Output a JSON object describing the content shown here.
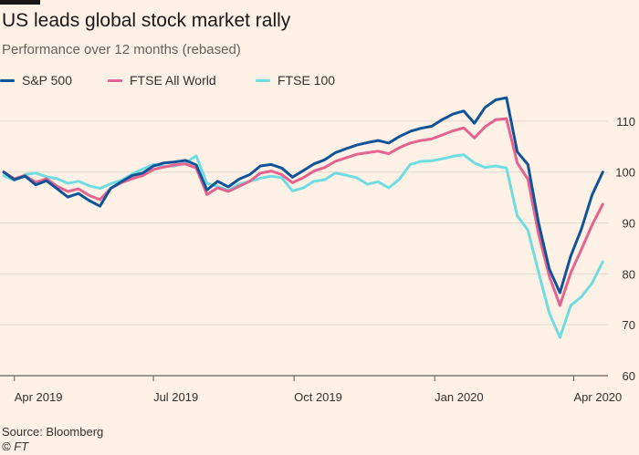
{
  "header": {
    "title": "US leads global stock market rally",
    "subtitle": "Performance over 12 months (rebased)"
  },
  "footer": {
    "source": "Source: Bloomberg",
    "copyright": "© FT"
  },
  "colors": {
    "background": "#fff1e5",
    "grid": "#e2d9d0",
    "sp500": "#0f5499",
    "ftse_world": "#e5638f",
    "ftse100": "#6fdde0"
  },
  "chart_data": {
    "type": "line",
    "xlabel": "",
    "ylabel": "",
    "ylim": [
      60,
      115
    ],
    "yticks": [
      60,
      70,
      80,
      90,
      100,
      110
    ],
    "xlim": [
      "2019-03-25",
      "2020-04-21"
    ],
    "xticks": [
      {
        "date": "2019-04-01",
        "label": "Apr 2019"
      },
      {
        "date": "2019-07-01",
        "label": "Jul 2019"
      },
      {
        "date": "2019-10-01",
        "label": "Oct 2019"
      },
      {
        "date": "2020-01-01",
        "label": "Jan 2020"
      },
      {
        "date": "2020-04-01",
        "label": "Apr 2020"
      }
    ],
    "grid": true,
    "y_axis_side": "right",
    "legend_position": "top-left",
    "series": [
      {
        "name": "S&P 500",
        "color": "#0f5499",
        "points": [
          [
            "2019-03-25",
            100
          ],
          [
            "2019-04-01",
            98.5
          ],
          [
            "2019-04-08",
            99.2
          ],
          [
            "2019-04-15",
            97.5
          ],
          [
            "2019-04-22",
            98.3
          ],
          [
            "2019-04-29",
            96.7
          ],
          [
            "2019-05-06",
            95.1
          ],
          [
            "2019-05-13",
            95.8
          ],
          [
            "2019-05-20",
            94.4
          ],
          [
            "2019-05-27",
            93.3
          ],
          [
            "2019-06-03",
            96.8
          ],
          [
            "2019-06-10",
            98.1
          ],
          [
            "2019-06-17",
            99.3
          ],
          [
            "2019-06-24",
            99.8
          ],
          [
            "2019-07-01",
            101.2
          ],
          [
            "2019-07-08",
            101.8
          ],
          [
            "2019-07-15",
            102
          ],
          [
            "2019-07-22",
            102.3
          ],
          [
            "2019-07-29",
            101.4
          ],
          [
            "2019-08-05",
            96.5
          ],
          [
            "2019-08-12",
            98.2
          ],
          [
            "2019-08-19",
            97.1
          ],
          [
            "2019-08-26",
            98.6
          ],
          [
            "2019-09-02",
            99.5
          ],
          [
            "2019-09-09",
            101.2
          ],
          [
            "2019-09-16",
            101.5
          ],
          [
            "2019-09-23",
            100.8
          ],
          [
            "2019-09-30",
            99
          ],
          [
            "2019-10-07",
            100.3
          ],
          [
            "2019-10-14",
            101.6
          ],
          [
            "2019-10-21",
            102.4
          ],
          [
            "2019-10-28",
            103.8
          ],
          [
            "2019-11-04",
            104.6
          ],
          [
            "2019-11-11",
            105.3
          ],
          [
            "2019-11-18",
            105.8
          ],
          [
            "2019-11-25",
            106.2
          ],
          [
            "2019-12-02",
            105.7
          ],
          [
            "2019-12-09",
            107
          ],
          [
            "2019-12-16",
            108
          ],
          [
            "2019-12-23",
            108.6
          ],
          [
            "2019-12-30",
            109
          ],
          [
            "2020-01-06",
            110.3
          ],
          [
            "2020-01-13",
            111.4
          ],
          [
            "2020-01-20",
            112
          ],
          [
            "2020-01-27",
            109.6
          ],
          [
            "2020-02-03",
            112.7
          ],
          [
            "2020-02-10",
            114.2
          ],
          [
            "2020-02-17",
            114.6
          ],
          [
            "2020-02-24",
            104
          ],
          [
            "2020-03-02",
            101.5
          ],
          [
            "2020-03-09",
            90
          ],
          [
            "2020-03-16",
            81
          ],
          [
            "2020-03-23",
            76.3
          ],
          [
            "2020-03-30",
            83.5
          ],
          [
            "2020-04-06",
            88.8
          ],
          [
            "2020-04-13",
            95.5
          ],
          [
            "2020-04-20",
            100
          ]
        ]
      },
      {
        "name": "FTSE All World",
        "color": "#e5638f",
        "points": [
          [
            "2019-03-25",
            100
          ],
          [
            "2019-04-01",
            98.7
          ],
          [
            "2019-04-08",
            99.3
          ],
          [
            "2019-04-15",
            98
          ],
          [
            "2019-04-22",
            98.7
          ],
          [
            "2019-04-29",
            97.2
          ],
          [
            "2019-05-06",
            96.2
          ],
          [
            "2019-05-13",
            96.7
          ],
          [
            "2019-05-20",
            95.4
          ],
          [
            "2019-05-27",
            94.6
          ],
          [
            "2019-06-03",
            96.8
          ],
          [
            "2019-06-10",
            97.9
          ],
          [
            "2019-06-17",
            98.7
          ],
          [
            "2019-06-24",
            99.3
          ],
          [
            "2019-07-01",
            100.5
          ],
          [
            "2019-07-08",
            101
          ],
          [
            "2019-07-15",
            101.4
          ],
          [
            "2019-07-22",
            101.6
          ],
          [
            "2019-07-29",
            100.8
          ],
          [
            "2019-08-05",
            95.6
          ],
          [
            "2019-08-12",
            96.9
          ],
          [
            "2019-08-19",
            96.2
          ],
          [
            "2019-08-26",
            97.2
          ],
          [
            "2019-09-02",
            98.2
          ],
          [
            "2019-09-09",
            99.8
          ],
          [
            "2019-09-16",
            100.2
          ],
          [
            "2019-09-23",
            99.5
          ],
          [
            "2019-09-30",
            97.9
          ],
          [
            "2019-10-07",
            98.9
          ],
          [
            "2019-10-14",
            100.2
          ],
          [
            "2019-10-21",
            100.9
          ],
          [
            "2019-10-28",
            102.1
          ],
          [
            "2019-11-04",
            102.8
          ],
          [
            "2019-11-11",
            103.5
          ],
          [
            "2019-11-18",
            103.8
          ],
          [
            "2019-11-25",
            104.1
          ],
          [
            "2019-12-02",
            103.6
          ],
          [
            "2019-12-09",
            104.8
          ],
          [
            "2019-12-16",
            105.7
          ],
          [
            "2019-12-23",
            106.2
          ],
          [
            "2019-12-30",
            106.5
          ],
          [
            "2020-01-06",
            107.3
          ],
          [
            "2020-01-13",
            108.1
          ],
          [
            "2020-01-20",
            108.7
          ],
          [
            "2020-01-27",
            106.7
          ],
          [
            "2020-02-03",
            108.9
          ],
          [
            "2020-02-10",
            110.3
          ],
          [
            "2020-02-17",
            110.5
          ],
          [
            "2020-02-24",
            101.8
          ],
          [
            "2020-03-02",
            98.6
          ],
          [
            "2020-03-09",
            87.8
          ],
          [
            "2020-03-16",
            79.6
          ],
          [
            "2020-03-23",
            73.8
          ],
          [
            "2020-03-30",
            80.2
          ],
          [
            "2020-04-06",
            84.8
          ],
          [
            "2020-04-13",
            89.6
          ],
          [
            "2020-04-20",
            93.7
          ]
        ]
      },
      {
        "name": "FTSE 100",
        "color": "#6fdde0",
        "points": [
          [
            "2019-03-25",
            99.3
          ],
          [
            "2019-04-01",
            98.4
          ],
          [
            "2019-04-08",
            99.5
          ],
          [
            "2019-04-15",
            99.8
          ],
          [
            "2019-04-22",
            99.1
          ],
          [
            "2019-04-29",
            98.7
          ],
          [
            "2019-05-06",
            97.8
          ],
          [
            "2019-05-13",
            98.2
          ],
          [
            "2019-05-20",
            97.3
          ],
          [
            "2019-05-27",
            96.8
          ],
          [
            "2019-06-03",
            97.7
          ],
          [
            "2019-06-10",
            98.4
          ],
          [
            "2019-06-17",
            99.6
          ],
          [
            "2019-06-24",
            100.6
          ],
          [
            "2019-07-01",
            101.5
          ],
          [
            "2019-07-08",
            101.1
          ],
          [
            "2019-07-15",
            101.2
          ],
          [
            "2019-07-22",
            101.8
          ],
          [
            "2019-07-29",
            103.2
          ],
          [
            "2019-08-05",
            97.8
          ],
          [
            "2019-08-12",
            97.2
          ],
          [
            "2019-08-19",
            96.4
          ],
          [
            "2019-08-26",
            97.6
          ],
          [
            "2019-09-02",
            98.2
          ],
          [
            "2019-09-09",
            98.8
          ],
          [
            "2019-09-16",
            99.2
          ],
          [
            "2019-09-23",
            98.9
          ],
          [
            "2019-09-30",
            96.3
          ],
          [
            "2019-10-07",
            96.9
          ],
          [
            "2019-10-14",
            98.2
          ],
          [
            "2019-10-21",
            98.5
          ],
          [
            "2019-10-28",
            99.8
          ],
          [
            "2019-11-04",
            99.4
          ],
          [
            "2019-11-11",
            98.9
          ],
          [
            "2019-11-18",
            97.6
          ],
          [
            "2019-11-25",
            98.1
          ],
          [
            "2019-12-02",
            96.9
          ],
          [
            "2019-12-09",
            98.6
          ],
          [
            "2019-12-16",
            101.5
          ],
          [
            "2019-12-23",
            102.1
          ],
          [
            "2019-12-30",
            102.2
          ],
          [
            "2020-01-06",
            102.6
          ],
          [
            "2020-01-13",
            103.1
          ],
          [
            "2020-01-20",
            103.4
          ],
          [
            "2020-01-27",
            101.8
          ],
          [
            "2020-02-03",
            100.9
          ],
          [
            "2020-02-10",
            101.2
          ],
          [
            "2020-02-17",
            100.8
          ],
          [
            "2020-02-24",
            91.4
          ],
          [
            "2020-03-02",
            88.6
          ],
          [
            "2020-03-09",
            80.3
          ],
          [
            "2020-03-16",
            72.3
          ],
          [
            "2020-03-23",
            67.5
          ],
          [
            "2020-03-30",
            73.8
          ],
          [
            "2020-04-06",
            75.5
          ],
          [
            "2020-04-13",
            78.2
          ],
          [
            "2020-04-20",
            82.4
          ]
        ]
      }
    ]
  }
}
